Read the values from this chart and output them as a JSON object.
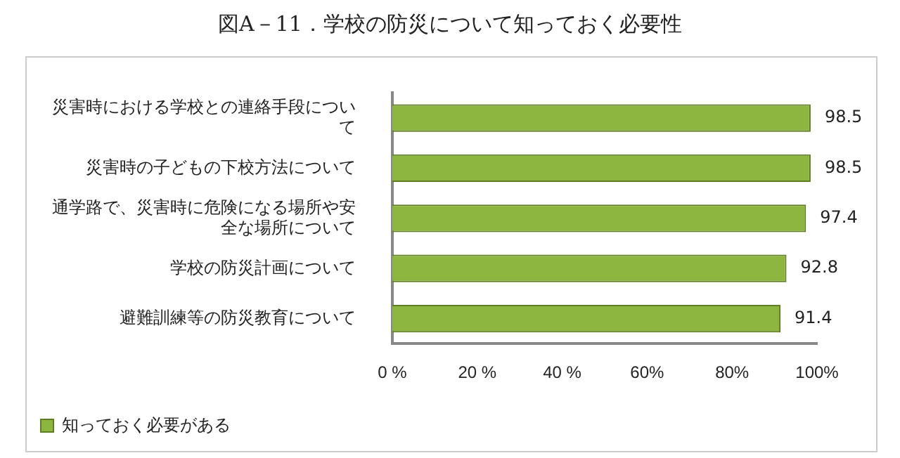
{
  "chart_data": {
    "type": "bar",
    "orientation": "horizontal",
    "title": "図A－11．学校の防災について知っておく必要性",
    "categories": [
      "災害時における学校との連絡手段について",
      "災害時の子どもの下校方法について",
      "通学路で、災害時に危険になる場所や安全な場所について",
      "学校の防災計画について",
      "避難訓練等の防災教育について"
    ],
    "series": [
      {
        "name": "知っておく必要がある",
        "color": "#8db640",
        "values": [
          98.5,
          98.5,
          97.4,
          92.8,
          91.4
        ]
      }
    ],
    "xlim": [
      0,
      100
    ],
    "xticks": [
      {
        "value": 0,
        "label": "0 %"
      },
      {
        "value": 20,
        "label": "20 %"
      },
      {
        "value": 40,
        "label": "40 %"
      },
      {
        "value": 60,
        "label": "60%"
      },
      {
        "value": 80,
        "label": "80%"
      },
      {
        "value": 100,
        "label": "100%"
      }
    ],
    "data_labels": true,
    "grid": false,
    "legend": "bottom left"
  }
}
